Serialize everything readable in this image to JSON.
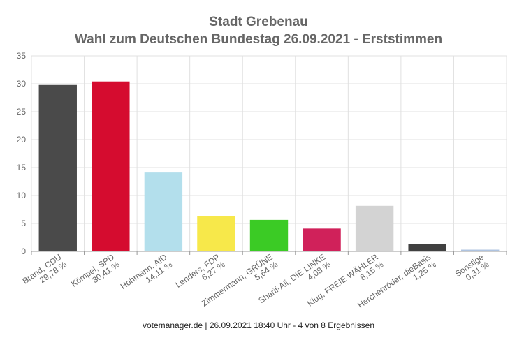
{
  "chart_data": {
    "type": "bar",
    "title": "Stadt Grebenau",
    "subtitle": "Wahl zum Deutschen Bundestag 26.09.2021  - Erststimmen",
    "categories": [
      "Brand, CDU",
      "Kömpel, SPD",
      "Hohmann, AfD",
      "Lenders, FDP",
      "Zimmermann, GRÜNE",
      "Sharif-Ali, DIE LINKE",
      "Klug, FREIE WÄHLER",
      "Herchenröder, dieBasis",
      "Sonstige"
    ],
    "value_labels": [
      "29,78 %",
      "30,41 %",
      "14,11 %",
      "6,27 %",
      "5,64 %",
      "4,08 %",
      "8,15 %",
      "1,25 %",
      "0,31 %"
    ],
    "values": [
      29.78,
      30.41,
      14.11,
      6.27,
      5.64,
      4.08,
      8.15,
      1.25,
      0.31
    ],
    "colors": [
      "#4a4a4a",
      "#d50c2f",
      "#b3dfec",
      "#f7e84a",
      "#3bcb25",
      "#d0215a",
      "#d3d3d3",
      "#404040",
      "#aec3e0"
    ],
    "ylim": [
      0,
      35
    ],
    "yticks": [
      0,
      5,
      10,
      15,
      20,
      25,
      30,
      35
    ],
    "grid": true
  },
  "footer": "votemanager.de | 26.09.2021 18:40 Uhr - 4 von 8 Ergebnissen"
}
